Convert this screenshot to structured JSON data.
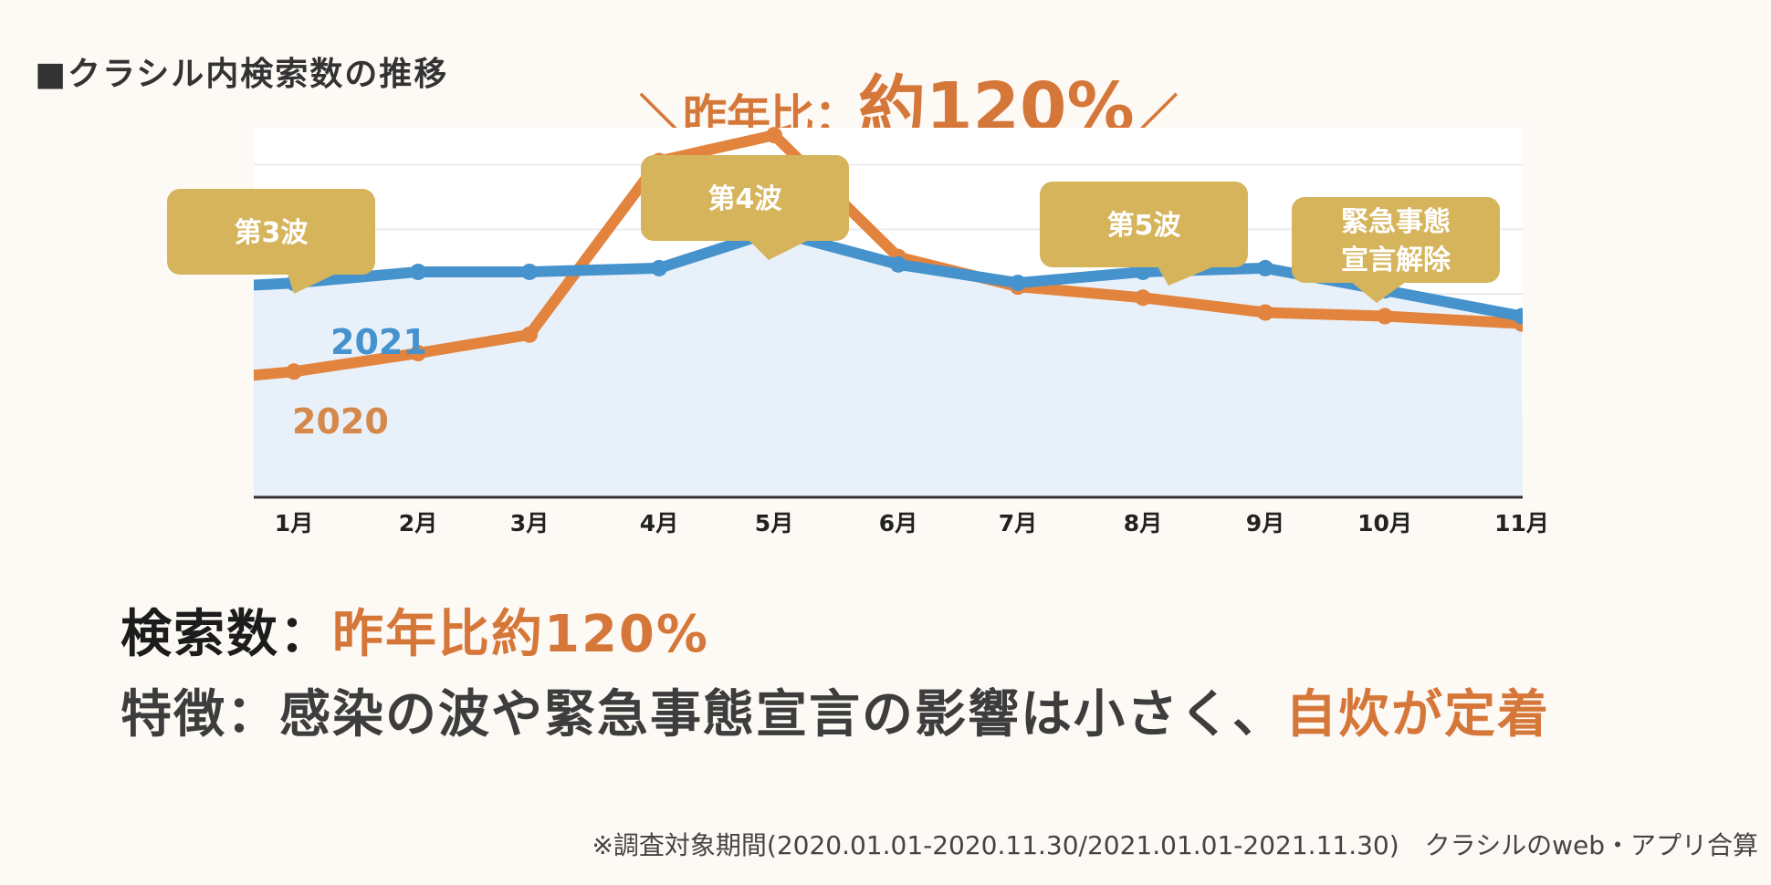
{
  "page": {
    "title": "■クラシル内検索数の推移",
    "headline": {
      "prefix": "＼昨年比：",
      "value": "約120%",
      "suffix": "／"
    },
    "summary": {
      "line1_label": "検索数：",
      "line1_value": "昨年比約120%",
      "line2_label": "特徴：感染の波や緊急事態宣言の影響は小さく、",
      "line2_value": "自炊が定着"
    },
    "footnote": "※調査対象期間(2020.01.01-2020.11.30/2021.01.01-2021.11.30)　クラシルのweb・アプリ合算"
  },
  "colors": {
    "series_2021": "#4592cd",
    "series_2020": "#e3843e",
    "area_fill": "#e8f1f9",
    "callout": "#d6b45c",
    "accent": "#d6773a"
  },
  "chart_data": {
    "type": "line",
    "categories": [
      "1月",
      "2月",
      "3月",
      "4月",
      "5月",
      "6月",
      "7月",
      "8月",
      "9月",
      "10月",
      "11月"
    ],
    "ylim": [
      0,
      100
    ],
    "grid": true,
    "series": [
      {
        "name": "2021",
        "values": [
          58,
          61,
          61,
          62,
          72,
          63,
          58,
          61,
          62,
          56,
          49
        ],
        "area": true
      },
      {
        "name": "2020",
        "values": [
          34,
          39,
          44,
          91,
          98,
          65,
          57,
          54,
          50,
          49,
          47
        ]
      }
    ],
    "callouts": [
      {
        "text": [
          "第3波"
        ],
        "anchor_index": 0,
        "placement": "above"
      },
      {
        "text": [
          "第4波"
        ],
        "anchor_index": 4,
        "placement": "above"
      },
      {
        "text": [
          "第5波"
        ],
        "anchor_index": 7,
        "placement": "above"
      },
      {
        "text": [
          "緊急事態",
          "宣言解除"
        ],
        "anchor_index": 9,
        "placement": "above"
      }
    ]
  }
}
